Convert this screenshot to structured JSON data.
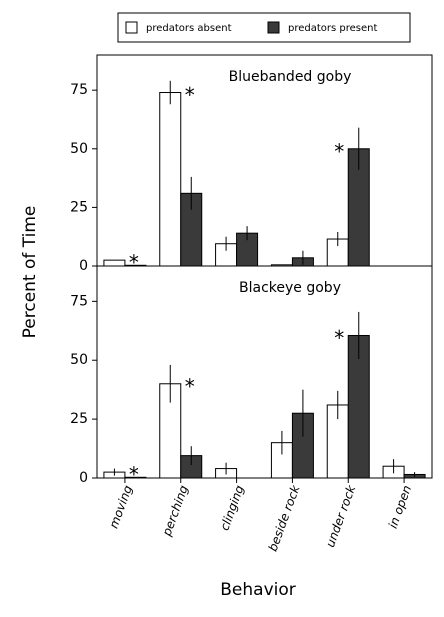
{
  "chart_data": {
    "type": "bar",
    "x_label": "Behavior",
    "y_label": "Percent of Time",
    "categories": [
      "moving",
      "perching",
      "clinging",
      "beside rock",
      "under rock",
      "in open"
    ],
    "series_names": [
      "predators absent",
      "predators present"
    ],
    "colors": [
      "#ffffff",
      "#3a3a3a"
    ],
    "significance_marker": "*",
    "ylim": [
      0,
      90
    ],
    "yticks": [
      0,
      25,
      50,
      75
    ],
    "panels": [
      {
        "title": "Bluebanded goby",
        "series": [
          {
            "values": [
              2.5,
              74,
              9.5,
              0.5,
              11.5,
              0
            ],
            "errors": [
              0,
              5,
              3,
              0,
              3,
              0
            ]
          },
          {
            "values": [
              0.3,
              31,
              14,
              3.5,
              50,
              0
            ],
            "errors": [
              0,
              7,
              3,
              3,
              9,
              0
            ]
          }
        ],
        "significant": [
          true,
          true,
          false,
          false,
          true,
          false
        ]
      },
      {
        "title": "Blackeye goby",
        "series": [
          {
            "values": [
              2.5,
              40,
              4,
              15,
              31,
              5
            ],
            "errors": [
              1.5,
              8,
              2.5,
              5,
              6,
              3
            ]
          },
          {
            "values": [
              0.3,
              9.5,
              0,
              27.5,
              60.5,
              1.5
            ],
            "errors": [
              0,
              4,
              0,
              10,
              10,
              1
            ]
          }
        ],
        "significant": [
          true,
          true,
          false,
          false,
          true,
          false
        ]
      }
    ]
  }
}
